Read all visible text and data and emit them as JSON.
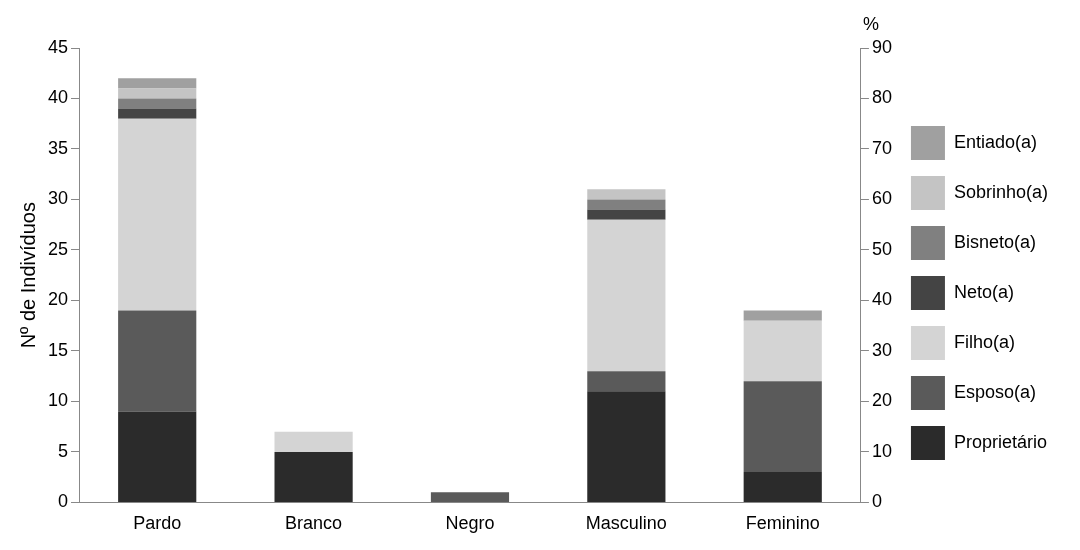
{
  "chart_data": {
    "type": "bar",
    "stacked": true,
    "ylabel": "Nº de Indivíduos",
    "y2label": "%",
    "categories": [
      "Pardo",
      "Branco",
      "Negro",
      "Masculino",
      "Feminino"
    ],
    "series": [
      {
        "name": "Proprietário",
        "color": "#2b2b2b",
        "values": [
          9,
          5,
          0,
          11,
          3
        ]
      },
      {
        "name": "Esposo(a)",
        "color": "#5a5a5a",
        "values": [
          10,
          0,
          1,
          2,
          9
        ]
      },
      {
        "name": "Filho(a)",
        "color": "#d4d4d4",
        "values": [
          19,
          2,
          0,
          15,
          6
        ]
      },
      {
        "name": "Neto(a)",
        "color": "#444444",
        "values": [
          1,
          0,
          0,
          1,
          0
        ]
      },
      {
        "name": "Bisneto(a)",
        "color": "#808080",
        "values": [
          1,
          0,
          0,
          1,
          0
        ]
      },
      {
        "name": "Sobrinho(a)",
        "color": "#c4c4c4",
        "values": [
          1,
          0,
          0,
          1,
          0
        ]
      },
      {
        "name": "Entiado(a)",
        "color": "#a0a0a0",
        "values": [
          1,
          0,
          0,
          0,
          1
        ]
      }
    ],
    "ylim": [
      0,
      45
    ],
    "yticks": [
      0,
      5,
      10,
      15,
      20,
      25,
      30,
      35,
      40,
      45
    ],
    "y2lim": [
      0,
      90
    ],
    "y2ticks": [
      0,
      10,
      20,
      30,
      40,
      50,
      60,
      70,
      80,
      90
    ],
    "grid": false,
    "legend": "right"
  }
}
